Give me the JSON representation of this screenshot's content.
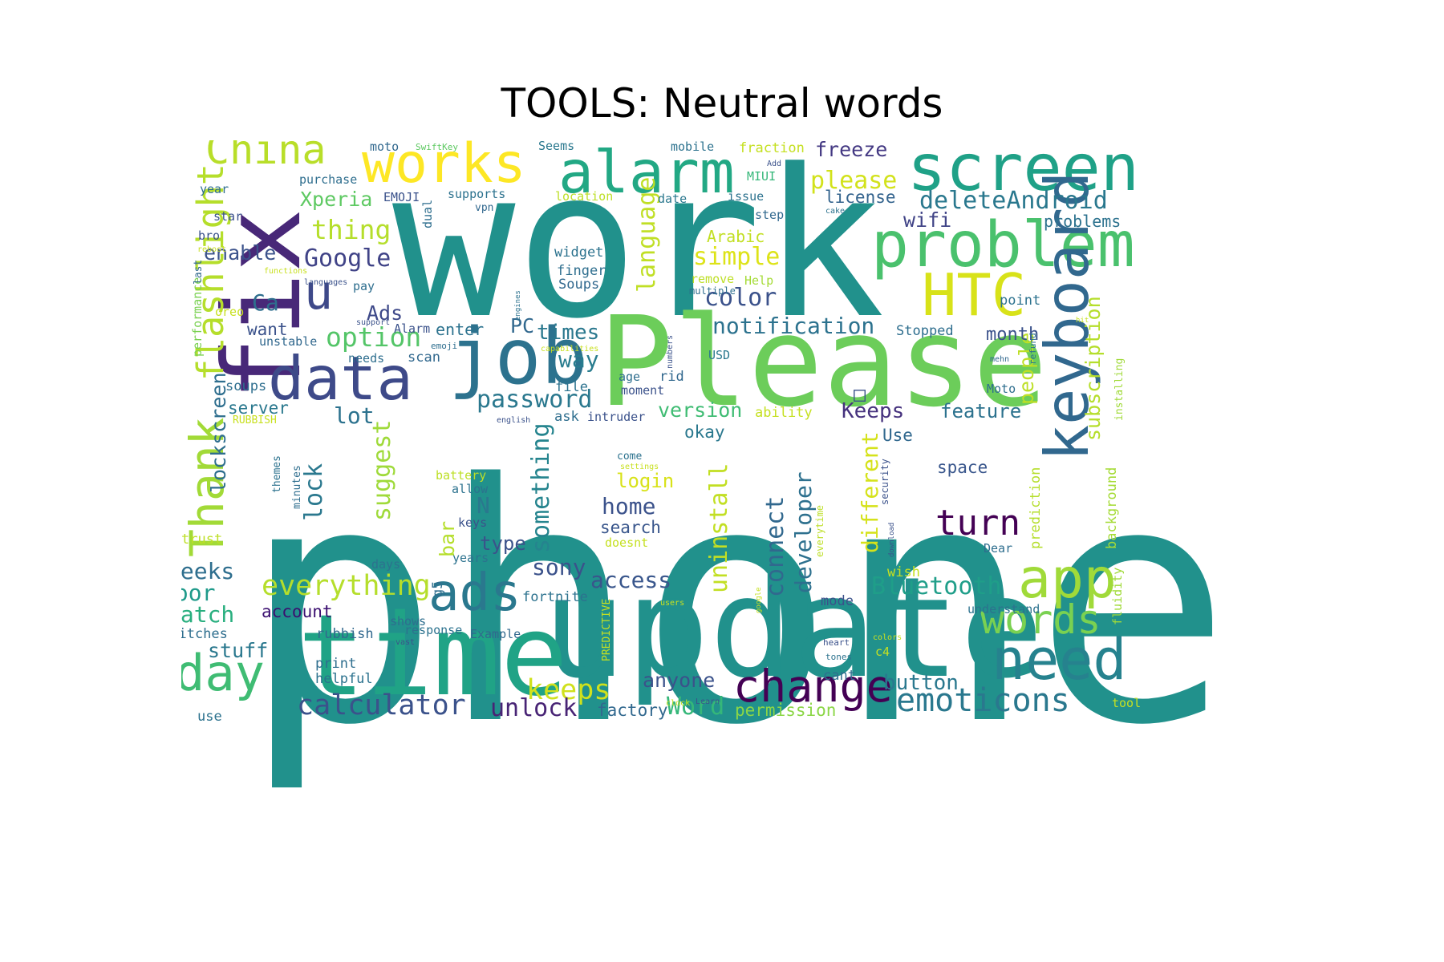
{
  "title": "TOOLS: Neutral words",
  "palette": {
    "background": "#ffffff",
    "teal": "#21918c",
    "green": "#5ec962",
    "yellow": "#fde725",
    "purple": "#440154",
    "blue": "#3b528b",
    "lime": "#b5de2b"
  },
  "words": [
    {
      "text": "phone",
      "color": "#21918c"
    },
    {
      "text": "work",
      "color": "#21918c"
    },
    {
      "text": "update",
      "color": "#21918c"
    },
    {
      "text": "time",
      "color": "#20a386"
    },
    {
      "text": "Please",
      "color": "#6ccd5a"
    },
    {
      "text": "fix",
      "color": "#482878"
    },
    {
      "text": "job",
      "color": "#2c728e"
    },
    {
      "text": "data",
      "color": "#3e4a89"
    },
    {
      "text": "alarm",
      "color": "#22a884"
    },
    {
      "text": "screen",
      "color": "#1fa187"
    },
    {
      "text": "problem",
      "color": "#4ac16d"
    },
    {
      "text": "works",
      "color": "#fde725"
    },
    {
      "text": "keyboard",
      "color": "#31688e"
    },
    {
      "text": "Thank",
      "color": "#a2da37"
    },
    {
      "text": "flashlight",
      "color": "#b5de2b"
    },
    {
      "text": "HTC",
      "color": "#d8e219"
    },
    {
      "text": "app",
      "color": "#a0da39"
    },
    {
      "text": "ads",
      "color": "#2a788e"
    },
    {
      "text": "need",
      "color": "#26828e"
    },
    {
      "text": "day",
      "color": "#3fbc73"
    },
    {
      "text": "change",
      "color": "#440154"
    },
    {
      "text": "China",
      "color": "#b8de29"
    },
    {
      "text": "u",
      "color": "#3e4989"
    },
    {
      "text": "words",
      "color": "#7ad151"
    },
    {
      "text": "emoticons",
      "color": "#2a788e"
    },
    {
      "text": "calculator",
      "color": "#3b528b"
    },
    {
      "text": "everything",
      "color": "#b5de2b"
    },
    {
      "text": "Bluetooth",
      "color": "#1f9e89"
    },
    {
      "text": "keeps",
      "color": "#d0e11c"
    },
    {
      "text": "unlock",
      "color": "#482475"
    },
    {
      "text": "Word",
      "color": "#35b779"
    },
    {
      "text": "notification",
      "color": "#2c728e"
    },
    {
      "text": "deleteAndroid",
      "color": "#2a788e"
    },
    {
      "text": "password",
      "color": "#2a788e"
    },
    {
      "text": "option",
      "color": "#54c568"
    },
    {
      "text": "Google",
      "color": "#404387"
    },
    {
      "text": "lockscreen",
      "color": "#2e6e8e"
    },
    {
      "text": "enable",
      "color": "#3b528b"
    },
    {
      "text": "thing",
      "color": "#b5de2b"
    },
    {
      "text": "Xperia",
      "color": "#5ec962"
    },
    {
      "text": "please",
      "color": "#d2e21b"
    },
    {
      "text": "freeze",
      "color": "#443983"
    },
    {
      "text": "license",
      "color": "#33638d"
    },
    {
      "text": "wifi",
      "color": "#414487"
    },
    {
      "text": "language",
      "color": "#c0df25"
    },
    {
      "text": "simple",
      "color": "#dde318"
    },
    {
      "text": "color",
      "color": "#3b528b"
    },
    {
      "text": "subscription",
      "color": "#b5de2b"
    },
    {
      "text": "people",
      "color": "#bddf26"
    },
    {
      "text": "times",
      "color": "#2a788e"
    },
    {
      "text": "way",
      "color": "#287c8e"
    },
    {
      "text": "version",
      "color": "#3fbc73"
    },
    {
      "text": "Keeps",
      "color": "#46327e"
    },
    {
      "text": "feature",
      "color": "#2c728e"
    },
    {
      "text": "month",
      "color": "#3b528b"
    },
    {
      "text": "turn",
      "color": "#440154"
    },
    {
      "text": "suggest",
      "color": "#9fda3a"
    },
    {
      "text": "lock",
      "color": "#2a788e"
    },
    {
      "text": "something",
      "color": "#25848e"
    },
    {
      "text": "connect",
      "color": "#31688e"
    },
    {
      "text": "developer",
      "color": "#2d708e"
    },
    {
      "text": "different",
      "color": "#d5e21a"
    },
    {
      "text": "uninstall",
      "color": "#c2df23"
    },
    {
      "text": "access",
      "color": "#39568c"
    },
    {
      "text": "sony",
      "color": "#3b528b"
    },
    {
      "text": "home",
      "color": "#3b528b"
    },
    {
      "text": "login",
      "color": "#d8e219"
    },
    {
      "text": "search",
      "color": "#39568c"
    },
    {
      "text": "anyone",
      "color": "#3b528b"
    },
    {
      "text": "button",
      "color": "#2a788e"
    },
    {
      "text": "factory",
      "color": "#31688e"
    },
    {
      "text": "permission",
      "color": "#8bd646"
    },
    {
      "text": "weeks",
      "color": "#2e6e8e"
    },
    {
      "text": "poor",
      "color": "#1f9a8a"
    },
    {
      "text": "watch",
      "color": "#29af7f"
    },
    {
      "text": "account",
      "color": "#3b0f70"
    },
    {
      "text": "stuff",
      "color": "#2a788e"
    },
    {
      "text": "space",
      "color": "#39568c"
    },
    {
      "text": "type",
      "color": "#3b528b"
    },
    {
      "text": "Ads",
      "color": "#3e4989"
    },
    {
      "text": "PC",
      "color": "#31688e"
    },
    {
      "text": "Ca",
      "color": "#2e6e8e"
    },
    {
      "text": "want",
      "color": "#3b528b"
    },
    {
      "text": "lot",
      "color": "#2c728e"
    },
    {
      "text": "okay",
      "color": "#2a788e"
    },
    {
      "text": "Use",
      "color": "#31688e"
    },
    {
      "text": "server",
      "color": "#2a788e"
    },
    {
      "text": "soups",
      "color": "#2e6e8e"
    },
    {
      "text": "performance",
      "color": "#7ad151"
    },
    {
      "text": "oreo",
      "color": "#c8e020"
    },
    {
      "text": "unstable",
      "color": "#31688e"
    },
    {
      "text": "needs",
      "color": "#2e6e8e"
    },
    {
      "text": "scan",
      "color": "#31688e"
    },
    {
      "text": "enter",
      "color": "#2c728e"
    },
    {
      "text": "Alarm",
      "color": "#3b528b"
    },
    {
      "text": "emoji",
      "color": "#2e6e8e"
    },
    {
      "text": "Arabic",
      "color": "#c2df23"
    },
    {
      "text": "widget",
      "color": "#2c728e"
    },
    {
      "text": "finger",
      "color": "#2e6e8e"
    },
    {
      "text": "Soups",
      "color": "#31688e"
    },
    {
      "text": "remove",
      "color": "#bddf26"
    },
    {
      "text": "Help",
      "color": "#a5db36"
    },
    {
      "text": "multiple",
      "color": "#2e6e8e"
    },
    {
      "text": "MIUI",
      "color": "#35b779"
    },
    {
      "text": "fraction",
      "color": "#c5e021"
    },
    {
      "text": "mobile",
      "color": "#2c728e"
    },
    {
      "text": "Seems",
      "color": "#2a788e"
    },
    {
      "text": "SwiftKey",
      "color": "#5ec962"
    },
    {
      "text": "moto",
      "color": "#31688e"
    },
    {
      "text": "purchase",
      "color": "#2e6e8e"
    },
    {
      "text": "EMOJI",
      "color": "#3b528b"
    },
    {
      "text": "supports",
      "color": "#2c728e"
    },
    {
      "text": "vpn",
      "color": "#31688e"
    },
    {
      "text": "dual",
      "color": "#2e6e8e"
    },
    {
      "text": "location",
      "color": "#bddf26"
    },
    {
      "text": "date",
      "color": "#2a788e"
    },
    {
      "text": "issue",
      "color": "#2c728e"
    },
    {
      "text": "step",
      "color": "#31688e"
    },
    {
      "text": "cake",
      "color": "#2c728e"
    },
    {
      "text": "Add",
      "color": "#3b528b"
    },
    {
      "text": "problems",
      "color": "#2c728e"
    },
    {
      "text": "point",
      "color": "#2c728e"
    },
    {
      "text": "Stopped",
      "color": "#2e6e8e"
    },
    {
      "text": "USD",
      "color": "#2a788e"
    },
    {
      "text": "mehn",
      "color": "#31688e"
    },
    {
      "text": "refund",
      "color": "#2c728e"
    },
    {
      "text": "installing",
      "color": "#a0da39"
    },
    {
      "text": "Moto",
      "color": "#2e6e8e"
    },
    {
      "text": "hit",
      "color": "#c5e021"
    },
    {
      "text": "year",
      "color": "#2e6e8e"
    },
    {
      "text": "star",
      "color": "#3b528b"
    },
    {
      "text": "bro",
      "color": "#3b528b"
    },
    {
      "text": "reboot",
      "color": "#c8e020"
    },
    {
      "text": "functions",
      "color": "#c8e020"
    },
    {
      "text": "last",
      "color": "#31688e"
    },
    {
      "text": "languages",
      "color": "#3b528b"
    },
    {
      "text": "pay",
      "color": "#2e6e8e"
    },
    {
      "text": "support",
      "color": "#3b528b"
    },
    {
      "text": "engines",
      "color": "#2c728e"
    },
    {
      "text": "capabilities",
      "color": "#c8e020"
    },
    {
      "text": "numbers",
      "color": "#3b528b"
    },
    {
      "text": "age",
      "color": "#2e6e8e"
    },
    {
      "text": "rid",
      "color": "#31688e"
    },
    {
      "text": "moment",
      "color": "#3b528b"
    },
    {
      "text": "file",
      "color": "#2c728e"
    },
    {
      "text": "ask",
      "color": "#2e6e8e"
    },
    {
      "text": "intruder",
      "color": "#3b528b"
    },
    {
      "text": "english",
      "color": "#3b528b"
    },
    {
      "text": "RUBBISH",
      "color": "#c8e020"
    },
    {
      "text": "ability",
      "color": "#c5e021"
    },
    {
      "text": "themes",
      "color": "#2c728e"
    },
    {
      "text": "minutes",
      "color": "#2e6e8e"
    },
    {
      "text": "come",
      "color": "#2c728e"
    },
    {
      "text": "settings",
      "color": "#c8e020"
    },
    {
      "text": "battery",
      "color": "#bddf26"
    },
    {
      "text": "allow",
      "color": "#2c728e"
    },
    {
      "text": "keys",
      "color": "#3b528b"
    },
    {
      "text": "years",
      "color": "#2c728e"
    },
    {
      "text": "doesnt",
      "color": "#c5e021"
    },
    {
      "text": "days",
      "color": "#2c728e"
    },
    {
      "text": "g5",
      "color": "#2e6e8e"
    },
    {
      "text": "bar",
      "color": "#b5de2b"
    },
    {
      "text": "N",
      "color": "#2a788e"
    },
    {
      "text": "trust",
      "color": "#bddf26"
    },
    {
      "text": "security",
      "color": "#3b528b"
    },
    {
      "text": "everytime",
      "color": "#bddf26"
    },
    {
      "text": "download",
      "color": "#3b528b"
    },
    {
      "text": "prediction",
      "color": "#b5de2b"
    },
    {
      "text": "background",
      "color": "#a5db36"
    },
    {
      "text": "wish",
      "color": "#c5e021"
    },
    {
      "text": "fluidity",
      "color": "#a0da39"
    },
    {
      "text": "mode",
      "color": "#3b528b"
    },
    {
      "text": "understand",
      "color": "#2c728e"
    },
    {
      "text": "google",
      "color": "#c5e021"
    },
    {
      "text": "users",
      "color": "#c8e020"
    },
    {
      "text": "fortnite",
      "color": "#2c728e"
    },
    {
      "text": "PREDICTIVE",
      "color": "#c5e021"
    },
    {
      "text": "shows",
      "color": "#2e6e8e"
    },
    {
      "text": "response",
      "color": "#2c728e"
    },
    {
      "text": "vast",
      "color": "#3b528b"
    },
    {
      "text": "Example",
      "color": "#31688e"
    },
    {
      "text": "glitches",
      "color": "#2e6e8e"
    },
    {
      "text": "rubbish",
      "color": "#31688e"
    },
    {
      "text": "print",
      "color": "#2e6e8e"
    },
    {
      "text": "helpful",
      "color": "#2c728e"
    },
    {
      "text": "use",
      "color": "#2c728e"
    },
    {
      "text": "heart",
      "color": "#3b528b"
    },
    {
      "text": "colors",
      "color": "#c8e020"
    },
    {
      "text": "tones",
      "color": "#2c728e"
    },
    {
      "text": "c4",
      "color": "#c5e021"
    },
    {
      "text": "cant",
      "color": "#2e6e8e"
    },
    {
      "text": "clock",
      "color": "#c8e020"
    },
    {
      "text": "Learn",
      "color": "#3b528b"
    },
    {
      "text": "Dear",
      "color": "#2e6e8e"
    },
    {
      "text": "tool",
      "color": "#c5e021"
    },
    {
      "text": "htc",
      "color": "#3b528b"
    },
    {
      "text": "□",
      "color": "#3b528b"
    }
  ]
}
